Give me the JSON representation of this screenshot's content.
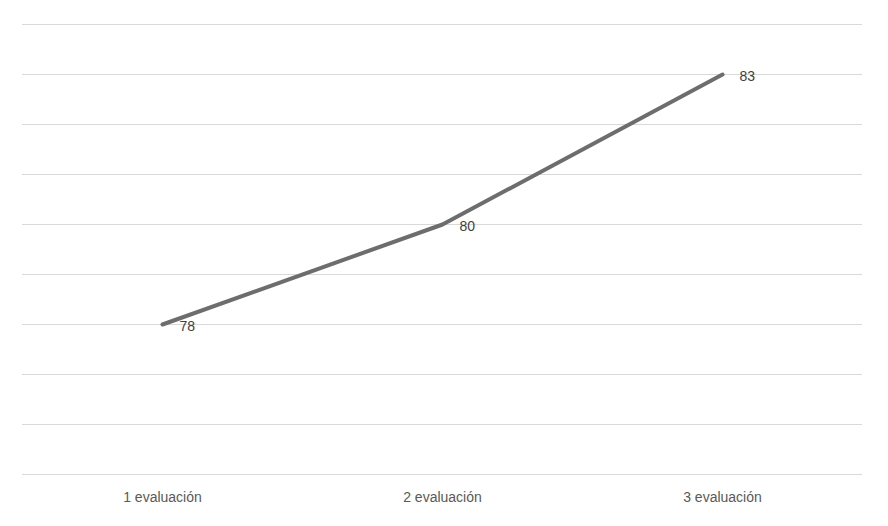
{
  "chart_data": {
    "type": "line",
    "categories": [
      "1 evaluación",
      "2 evaluación",
      "3 evaluación"
    ],
    "values": [
      78,
      80,
      83
    ],
    "color": "#6d6d6d",
    "ylim": [
      75,
      84
    ],
    "yticks": [
      75,
      76,
      77,
      78,
      79,
      80,
      81,
      82,
      83,
      84
    ],
    "grid": true,
    "data_labels": true,
    "tick_labels": "x"
  }
}
